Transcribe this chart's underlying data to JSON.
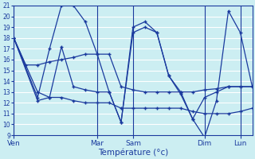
{
  "title": "Température (°c)",
  "background_color": "#cceef2",
  "line_color": "#1a3a9e",
  "grid_color": "#ffffff",
  "ylim": [
    9,
    21
  ],
  "yticks": [
    9,
    10,
    11,
    12,
    13,
    14,
    15,
    16,
    17,
    18,
    19,
    20,
    21
  ],
  "xlim": [
    0,
    20
  ],
  "day_labels": [
    "Ven",
    "Mar",
    "Sam",
    "Dim",
    "Lun"
  ],
  "day_positions": [
    0,
    7,
    10,
    16,
    19
  ],
  "vline_positions": [
    0,
    7,
    10,
    16,
    19
  ],
  "lines": [
    {
      "x": [
        0,
        1,
        2,
        3,
        4,
        5,
        6,
        7,
        8,
        9,
        10,
        11,
        12,
        13,
        14,
        15,
        16,
        17,
        18,
        19,
        20
      ],
      "y": [
        18.0,
        15.5,
        15.5,
        15.8,
        16.0,
        16.2,
        16.5,
        16.5,
        16.5,
        13.5,
        13.2,
        13.0,
        13.0,
        13.0,
        13.0,
        13.0,
        13.2,
        13.3,
        13.5,
        13.5,
        13.5
      ]
    },
    {
      "x": [
        0,
        2,
        3,
        4,
        5,
        6,
        7,
        8,
        9,
        10,
        11,
        12,
        13,
        14,
        15,
        16,
        17,
        18,
        19,
        20
      ],
      "y": [
        18.0,
        12.5,
        17.0,
        21.0,
        21.0,
        19.5,
        16.5,
        13.0,
        10.2,
        19.0,
        19.5,
        18.5,
        14.5,
        12.8,
        10.5,
        8.8,
        12.2,
        20.5,
        18.5,
        13.5
      ]
    },
    {
      "x": [
        0,
        2,
        3,
        4,
        5,
        6,
        7,
        8,
        9,
        10,
        11,
        12,
        13,
        14,
        15,
        16,
        17,
        18,
        19,
        20
      ],
      "y": [
        18.0,
        12.2,
        12.5,
        17.2,
        13.5,
        13.2,
        13.0,
        13.0,
        10.2,
        18.5,
        19.0,
        18.5,
        14.5,
        13.0,
        10.5,
        12.5,
        13.0,
        13.5,
        13.5,
        13.5
      ]
    },
    {
      "x": [
        0,
        2,
        3,
        4,
        5,
        6,
        7,
        8,
        9,
        10,
        11,
        12,
        13,
        14,
        15,
        16,
        17,
        18,
        19,
        20
      ],
      "y": [
        18.0,
        13.0,
        12.5,
        12.5,
        12.2,
        12.0,
        12.0,
        12.0,
        11.5,
        11.5,
        11.5,
        11.5,
        11.5,
        11.5,
        11.2,
        11.0,
        11.0,
        11.0,
        11.2,
        11.5
      ]
    }
  ]
}
